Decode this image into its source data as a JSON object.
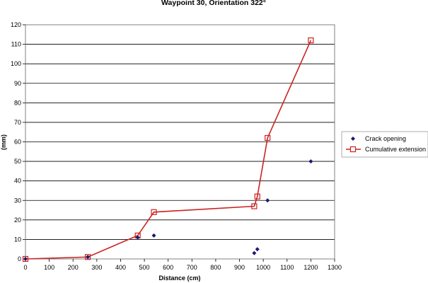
{
  "chart_data": {
    "type": "scatter",
    "title": "Waypoint 30, Orientation 322°",
    "xlabel": "Distance (cm)",
    "ylabel": "(mm)",
    "xlim": [
      0,
      1300
    ],
    "ylim": [
      0,
      120
    ],
    "x_ticks": [
      0,
      100,
      200,
      300,
      400,
      500,
      600,
      700,
      800,
      900,
      1000,
      1100,
      1200,
      1300
    ],
    "y_ticks": [
      0,
      10,
      20,
      30,
      40,
      50,
      60,
      70,
      80,
      90,
      100,
      110,
      120
    ],
    "grid": "horizontal",
    "legend_position": "right",
    "series": [
      {
        "name": "Crack opening",
        "style": "markers",
        "marker": "diamond",
        "color": "#1a1a6e",
        "x": [
          0,
          262,
          472,
          540,
          962,
          975,
          1018,
          1200
        ],
        "y": [
          0,
          1,
          11,
          12,
          3,
          5,
          30,
          50
        ]
      },
      {
        "name": "Cumulative extension",
        "style": "line-markers",
        "marker": "open-square",
        "color": "#cc2222",
        "x": [
          0,
          262,
          472,
          540,
          962,
          975,
          1018,
          1200
        ],
        "y": [
          0,
          1,
          12,
          24,
          27,
          32,
          62,
          112
        ]
      }
    ]
  }
}
